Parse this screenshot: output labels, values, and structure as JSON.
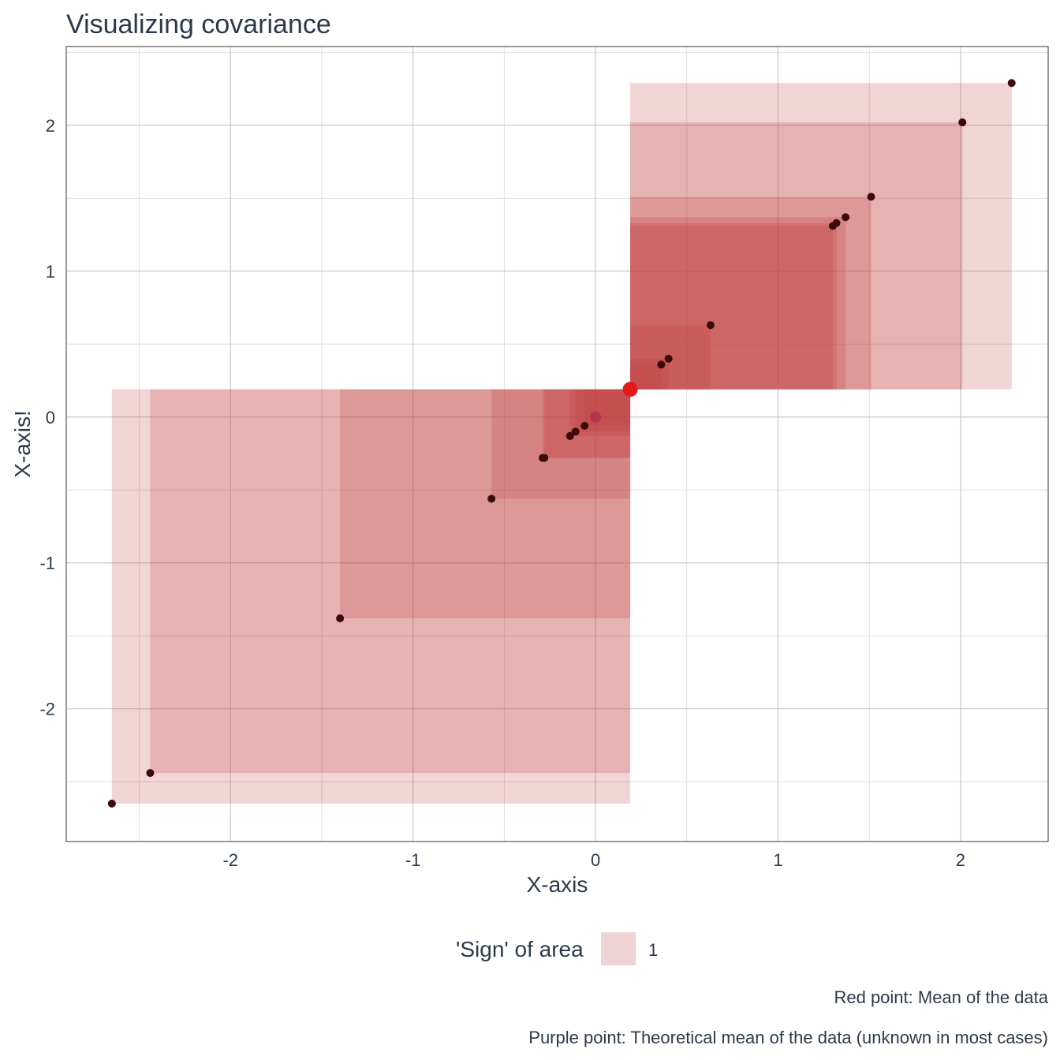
{
  "chart_data": {
    "type": "scatter",
    "title": "Visualizing covariance",
    "xlabel": "X-axis",
    "ylabel": "X-axis!",
    "xlim": [
      -2.9,
      2.48
    ],
    "ylim": [
      -2.91,
      2.54
    ],
    "x_ticks": [
      -2,
      -1,
      0,
      1,
      2
    ],
    "y_ticks": [
      -2,
      -1,
      0,
      1,
      2
    ],
    "tick_labels": {
      "x": [
        "-2",
        "-1",
        "0",
        "1",
        "2"
      ],
      "y": [
        "-2",
        "-1",
        "0",
        "1",
        "2"
      ]
    },
    "grid": true,
    "points": [
      {
        "x": -2.65,
        "y": -2.65
      },
      {
        "x": -2.44,
        "y": -2.44
      },
      {
        "x": -1.4,
        "y": -1.38
      },
      {
        "x": -0.57,
        "y": -0.56
      },
      {
        "x": -0.29,
        "y": -0.28
      },
      {
        "x": -0.28,
        "y": -0.28
      },
      {
        "x": -0.14,
        "y": -0.13
      },
      {
        "x": -0.11,
        "y": -0.1
      },
      {
        "x": -0.06,
        "y": -0.06
      },
      {
        "x": 0.36,
        "y": 0.36
      },
      {
        "x": 0.4,
        "y": 0.4
      },
      {
        "x": 0.63,
        "y": 0.63
      },
      {
        "x": 1.3,
        "y": 1.31
      },
      {
        "x": 1.32,
        "y": 1.33
      },
      {
        "x": 1.37,
        "y": 1.37
      },
      {
        "x": 1.51,
        "y": 1.51
      },
      {
        "x": 2.01,
        "y": 2.02
      },
      {
        "x": 2.28,
        "y": 2.29
      }
    ],
    "mean_point": {
      "x": 0.19,
      "y": 0.19,
      "color": "#e31a1c"
    },
    "theoretical_mean_point": {
      "x": 0.0,
      "y": 0.0,
      "color": "#b0304a"
    },
    "area_fill_color": "#c0393b",
    "area_alpha": 0.22,
    "point_color": "#3d0a0a",
    "legend": {
      "title": "'Sign' of area",
      "entries": [
        {
          "label": "1",
          "color": "#efd3d4"
        }
      ],
      "placement": "bottom"
    },
    "captions": [
      "Red point: Mean of the data",
      "Purple point: Theoretical mean of the data (unknown in most cases)"
    ]
  }
}
